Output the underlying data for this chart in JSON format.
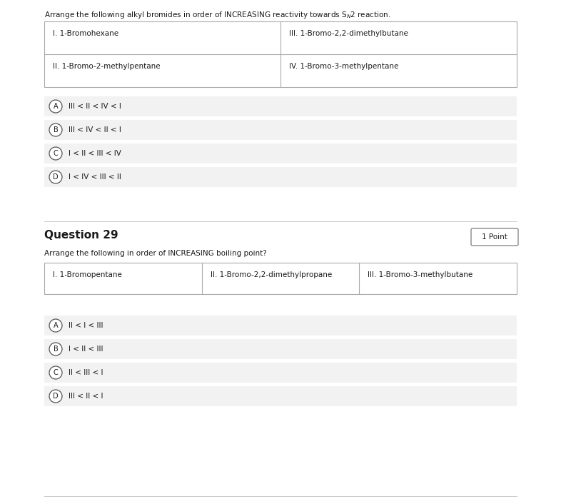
{
  "page_bg": "#ffffff",
  "option_bg": "#f2f2f2",
  "text_color": "#1a1a1a",
  "q28_prompt": "Arrange the following alkyl bromides in order of INCREASING reactivity towards Sₙ₂ reaction.",
  "q28_table": [
    [
      "I. 1-Bromohexane",
      "III. 1-Bromo-2,2-dimethylbutane"
    ],
    [
      "II. 1-Bromo-2-methylpentane",
      "IV. 1-Bromo-3-methylpentane"
    ]
  ],
  "q28_options": [
    [
      "A",
      "III < II < IV < I"
    ],
    [
      "B",
      "III < IV < II < I"
    ],
    [
      "C",
      "I < II < III < IV"
    ],
    [
      "D",
      "I < IV < III < II"
    ]
  ],
  "q29_header": "Question 29",
  "q29_points": "1 Point",
  "q29_prompt": "Arrange the following in order of INCREASING boiling point?",
  "q29_table": [
    [
      "I. 1-Bromopentane",
      "II. 1-Bromo-2,2-dimethylpropane",
      "III. 1-Bromo-3-methylbutane"
    ]
  ],
  "q29_options": [
    [
      "A",
      "II < I < III"
    ],
    [
      "B",
      "I < II < III"
    ],
    [
      "C",
      "II < III < I"
    ],
    [
      "D",
      "III < II < I"
    ]
  ],
  "figsize": [
    7.86,
    7.06
  ],
  "dpi": 100
}
